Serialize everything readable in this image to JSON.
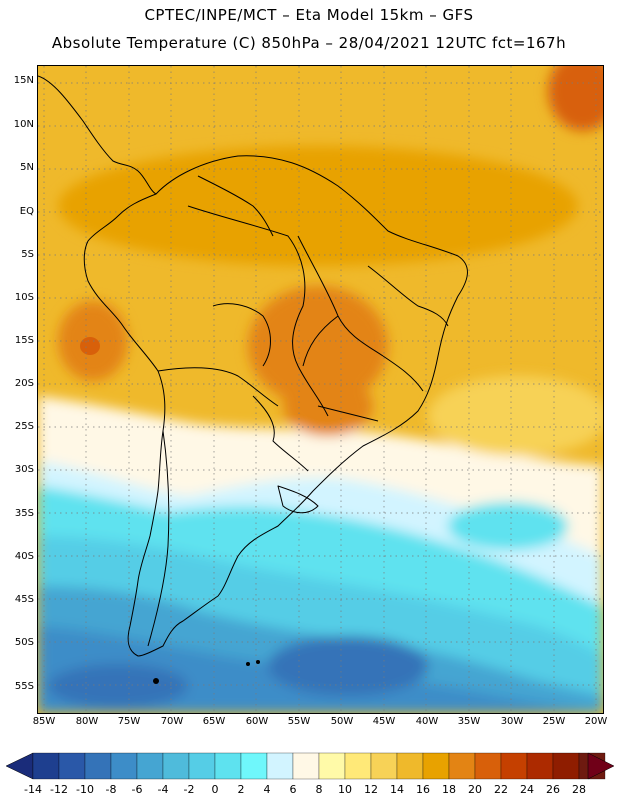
{
  "header": {
    "line1": "CPTEC/INPE/MCT –  Eta Model 15km – GFS",
    "line2": "Absolute Temperature (C) 850hPa – 28/04/2021 12UTC fct=167h"
  },
  "map": {
    "lat_labels": [
      "15N",
      "10N",
      "5N",
      "EQ",
      "5S",
      "10S",
      "15S",
      "20S",
      "25S",
      "30S",
      "35S",
      "40S",
      "45S",
      "50S",
      "55S"
    ],
    "lon_labels": [
      "85W",
      "80W",
      "75W",
      "70W",
      "65W",
      "60W",
      "55W",
      "50W",
      "45W",
      "40W",
      "35W",
      "30W",
      "25W",
      "20W"
    ]
  },
  "colorbar": {
    "labels": [
      "-14",
      "-12",
      "-10",
      "-8",
      "-6",
      "-4",
      "-2",
      "0",
      "2",
      "4",
      "6",
      "8",
      "10",
      "12",
      "14",
      "16",
      "18",
      "20",
      "22",
      "24",
      "26",
      "28"
    ],
    "colors": [
      "#1e3f8f",
      "#2a58a8",
      "#3473b8",
      "#3d8dc8",
      "#45a5d2",
      "#4fbbdb",
      "#55cde6",
      "#5ee2ef",
      "#6ff7fb",
      "#d2f4ff",
      "#fff8e6",
      "#fffaa8",
      "#ffe978",
      "#f7d257",
      "#efb92b",
      "#e8a200",
      "#e38414",
      "#d8600a",
      "#c54000",
      "#ac2a00",
      "#8f1d00",
      "#6e1a10"
    ],
    "left_arrow_color": "#1a2c7a",
    "right_arrow_color": "#700018"
  }
}
